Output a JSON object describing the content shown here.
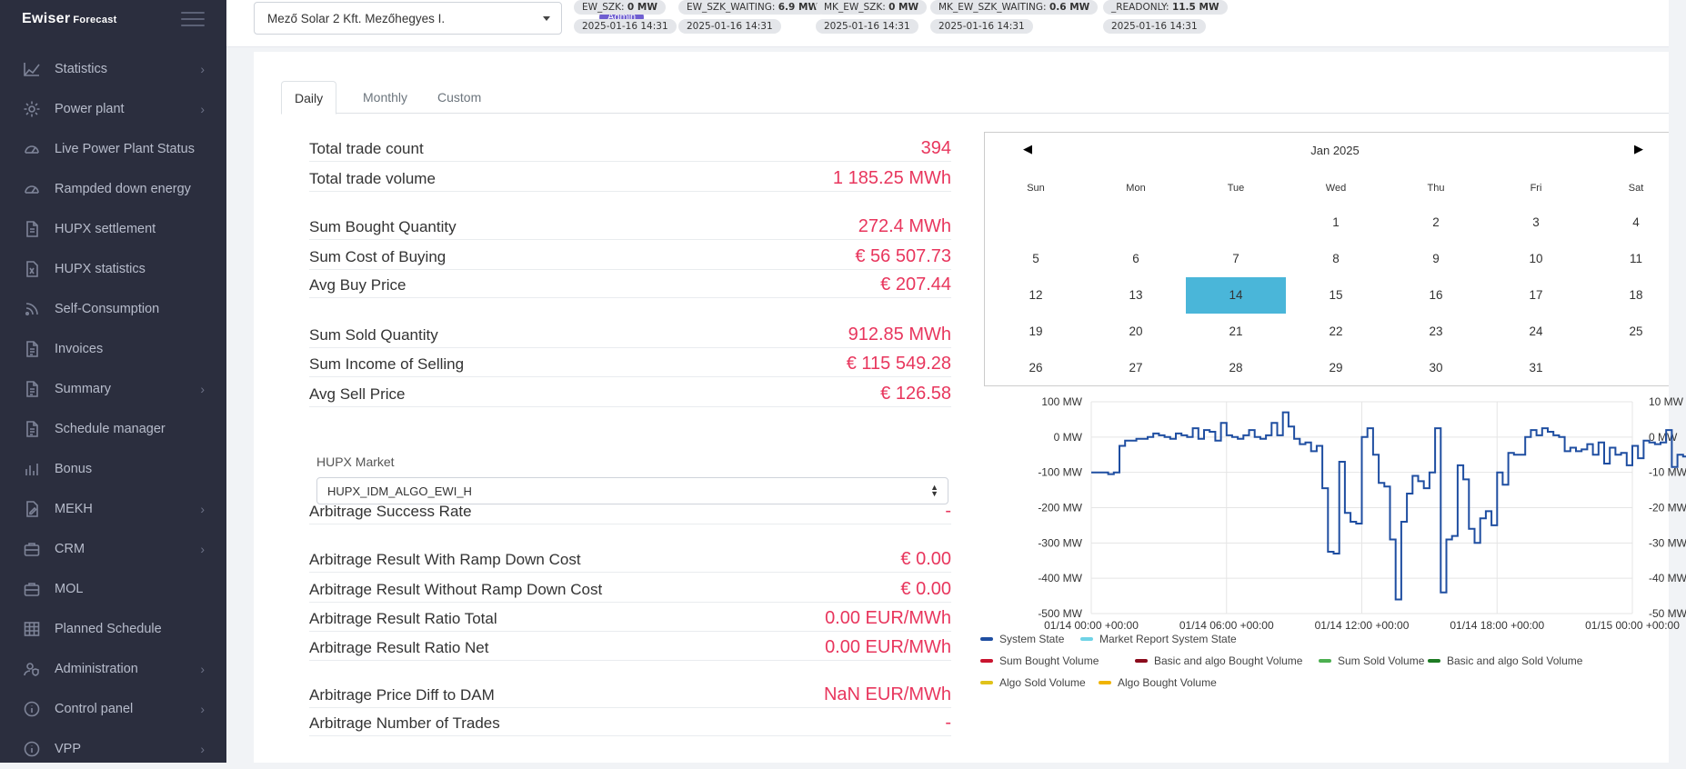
{
  "sidebar": {
    "logo": "Ewiser",
    "logo_sub": "Forecast",
    "items": [
      {
        "label": "Statistics",
        "icon": "chart-line-icon",
        "chevron": true
      },
      {
        "label": "Power plant",
        "icon": "gear-icon",
        "chevron": true
      },
      {
        "label": "Live Power Plant Status",
        "icon": "gauge-icon",
        "chevron": false
      },
      {
        "label": "Rampded down energy",
        "icon": "gauge-icon",
        "chevron": false
      },
      {
        "label": "HUPX settlement",
        "icon": "file-icon",
        "chevron": false
      },
      {
        "label": "HUPX statistics",
        "icon": "file-excel-icon",
        "chevron": false
      },
      {
        "label": "Self-Consumption",
        "icon": "rss-icon",
        "chevron": false
      },
      {
        "label": "Invoices",
        "icon": "file-text-icon",
        "chevron": false
      },
      {
        "label": "Summary",
        "icon": "file-text-icon",
        "chevron": true
      },
      {
        "label": "Schedule manager",
        "icon": "file-text-icon",
        "chevron": false
      },
      {
        "label": "Bonus",
        "icon": "bar-chart-icon",
        "chevron": false
      },
      {
        "label": "MEKH",
        "icon": "file-edit-icon",
        "chevron": true
      },
      {
        "label": "CRM",
        "icon": "briefcase-icon",
        "chevron": true
      },
      {
        "label": "MOL",
        "icon": "briefcase-icon",
        "chevron": false
      },
      {
        "label": "Planned Schedule",
        "icon": "grid-icon",
        "chevron": false
      },
      {
        "label": "Administration",
        "icon": "user-shield-icon",
        "chevron": true
      },
      {
        "label": "Control panel",
        "icon": "info-circle-icon",
        "chevron": true
      },
      {
        "label": "VPP",
        "icon": "info-circle-icon",
        "chevron": true
      }
    ]
  },
  "header": {
    "plant": "Mező Solar 2 Kft. Mezőhegyes I.",
    "role": "Admin",
    "stats": [
      {
        "key": "EW_SZK:",
        "value": "0 MW",
        "time": "2025-01-16 14:31"
      },
      {
        "key": "EW_SZK_WAITING:",
        "value": "6.9 MW",
        "time": "2025-01-16 14:31"
      },
      {
        "key": "MK_EW_SZK:",
        "value": "0 MW",
        "time": "2025-01-16 14:31"
      },
      {
        "key": "MK_EW_SZK_WAITING:",
        "value": "0.6 MW",
        "time": "2025-01-16 14:31"
      },
      {
        "key": "_READONLY:",
        "value": "11.5 MW",
        "time": "2025-01-16 14:31"
      }
    ]
  },
  "tabs": [
    "Daily",
    "Monthly",
    "Custom"
  ],
  "active_tab": "Daily",
  "stats": [
    {
      "label": "Total trade count",
      "value": "394"
    },
    {
      "label": "Total trade volume",
      "value": "1 185.25 MWh"
    },
    {
      "label": "Sum Bought Quantity",
      "value": "272.4 MWh"
    },
    {
      "label": "Sum Cost of Buying",
      "value": "€ 56 507.73"
    },
    {
      "label": "Avg Buy Price",
      "value": "€ 207.44"
    },
    {
      "label": "Sum Sold Quantity",
      "value": "912.85 MWh"
    },
    {
      "label": "Sum Income of Selling",
      "value": "€ 115 549.28"
    },
    {
      "label": "Avg Sell Price",
      "value": "€ 126.58"
    },
    {
      "label": "Arbitrage Success Rate",
      "value": "-"
    },
    {
      "label": "Arbitrage Result With Ramp Down Cost",
      "value": "€ 0.00"
    },
    {
      "label": "Arbitrage Result Without Ramp Down Cost",
      "value": "€ 0.00"
    },
    {
      "label": "Arbitrage Result Ratio Total",
      "value": "0.00 EUR/MWh"
    },
    {
      "label": "Arbitrage Result Ratio Net",
      "value": "0.00 EUR/MWh"
    },
    {
      "label": "Arbitrage Price Diff to DAM",
      "value": "NaN EUR/MWh"
    },
    {
      "label": "Arbitrage Number of Trades",
      "value": "-"
    }
  ],
  "market": {
    "label": "HUPX Market",
    "value": "HUPX_IDM_ALGO_EWI_H"
  },
  "calendar": {
    "title": "Jan 2025",
    "prev": "◀",
    "next": "▶",
    "dow": [
      "Sun",
      "Mon",
      "Tue",
      "Wed",
      "Thu",
      "Fri",
      "Sat"
    ],
    "first_weekday": 3,
    "days": 31,
    "selected": 14
  },
  "chart_data": {
    "type": "line",
    "x_ticks": [
      "01/14 00:00 +00:00",
      "01/14 06:00 +00:00",
      "01/14 12:00 +00:00",
      "01/14 18:00 +00:00",
      "01/15 00:00 +00:00"
    ],
    "y_left_ticks": [
      "100 MW",
      "0 MW",
      "-100 MW",
      "-200 MW",
      "-300 MW",
      "-400 MW",
      "-500 MW"
    ],
    "y_right_ticks": [
      "10 MW",
      "0 MW",
      "-10 MW",
      "-20 MW",
      "-30 MW",
      "-40 MW",
      "-50 MW"
    ],
    "ylim": [
      -500,
      100
    ],
    "xlim_hours": [
      0,
      24
    ],
    "legend": [
      {
        "name": "System State",
        "color": "#1f4ea1"
      },
      {
        "name": "Market Report System State",
        "color": "#6fd3e6"
      },
      {
        "name": "Sum Bought Volume",
        "color": "#c9142f"
      },
      {
        "name": "Basic and algo Bought Volume",
        "color": "#8b0b1c"
      },
      {
        "name": "Sum Sold Volume",
        "color": "#4caf50"
      },
      {
        "name": "Basic and algo Sold Volume",
        "color": "#1e7b23"
      },
      {
        "name": "Algo Sold Volume",
        "color": "#e0c21a"
      },
      {
        "name": "Algo Bought Volume",
        "color": "#f0b400"
      }
    ],
    "series": [
      {
        "name": "System State",
        "step": 0.25,
        "values": [
          -100,
          -100,
          -100,
          -105,
          -100,
          -25,
          -10,
          -10,
          -5,
          -5,
          0,
          10,
          5,
          0,
          -5,
          10,
          5,
          0,
          25,
          -5,
          20,
          15,
          -10,
          40,
          5,
          0,
          -5,
          5,
          20,
          0,
          -5,
          5,
          40,
          5,
          70,
          30,
          -5,
          -20,
          -15,
          -40,
          -25,
          -145,
          -325,
          -330,
          -70,
          -215,
          -240,
          -245,
          0,
          25,
          -50,
          -130,
          -140,
          -290,
          -460,
          -240,
          -160,
          -110,
          -125,
          -145,
          -100,
          25,
          -440,
          -290,
          -280,
          -80,
          -120,
          -260,
          -300,
          -230,
          -210,
          -250,
          -100,
          -135,
          -45,
          -50,
          -50,
          0,
          20,
          5,
          25,
          15,
          5,
          0,
          -40,
          -30,
          -40,
          -35,
          -20,
          -50,
          -15,
          -75,
          -30,
          -50,
          -45,
          -80,
          -25,
          -60,
          -10,
          -15,
          -20,
          -15,
          20,
          -85,
          -50,
          -55
        ]
      }
    ]
  }
}
